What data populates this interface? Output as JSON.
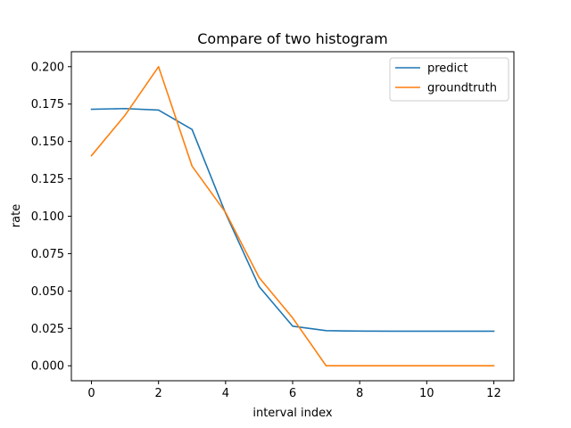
{
  "chart_data": {
    "type": "line",
    "title": "Compare of two histogram",
    "xlabel": "interval index",
    "ylabel": "rate",
    "xlim": [
      -0.6,
      12.6
    ],
    "ylim": [
      -0.01,
      0.21
    ],
    "xticks": [
      0,
      2,
      4,
      6,
      8,
      10,
      12
    ],
    "xtick_labels": [
      "0",
      "2",
      "4",
      "6",
      "8",
      "10",
      "12"
    ],
    "yticks": [
      0.0,
      0.025,
      0.05,
      0.075,
      0.1,
      0.125,
      0.15,
      0.175,
      0.2
    ],
    "ytick_labels": [
      "0.000",
      "0.025",
      "0.050",
      "0.075",
      "0.100",
      "0.125",
      "0.150",
      "0.175",
      "0.200"
    ],
    "grid": false,
    "legend_position": "upper right",
    "x": [
      0,
      1,
      2,
      3,
      4,
      5,
      6,
      7,
      8,
      9,
      10,
      11,
      12
    ],
    "series": [
      {
        "name": "predict",
        "color": "#1f77b4",
        "values": [
          0.1715,
          0.172,
          0.171,
          0.158,
          0.102,
          0.053,
          0.0265,
          0.0235,
          0.0232,
          0.0231,
          0.0231,
          0.0231,
          0.0231
        ]
      },
      {
        "name": "groundtruth",
        "color": "#ff7f0e",
        "values": [
          0.1405,
          0.1675,
          0.2,
          0.1335,
          0.1025,
          0.059,
          0.032,
          0.0,
          0.0,
          0.0,
          0.0,
          0.0,
          0.0
        ]
      }
    ]
  }
}
